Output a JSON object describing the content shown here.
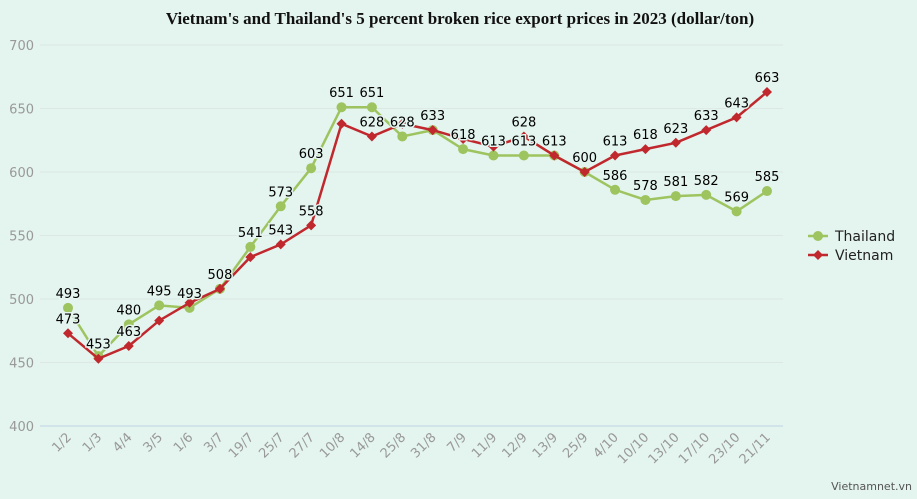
{
  "chart_data": {
    "type": "line",
    "title": "Vietnam's and Thailand's 5 percent broken rice export prices in 2023 (dollar/ton)",
    "source": "Vietnamnet.vn",
    "categories": [
      "1/2",
      "1/3",
      "4/4",
      "3/5",
      "1/6",
      "3/7",
      "19/7",
      "25/7",
      "27/7",
      "10/8",
      "14/8",
      "25/8",
      "31/8",
      "7/9",
      "11/9",
      "12/9",
      "13/9",
      "25/9",
      "4/10",
      "10/10",
      "13/10",
      "17/10",
      "23/10",
      "21/11"
    ],
    "series": [
      {
        "name": "Thailand",
        "color": "#9dc45f",
        "marker": "circle",
        "values": [
          493,
          455,
          480,
          495,
          493,
          508,
          541,
          573,
          603,
          651,
          651,
          628,
          633,
          618,
          613,
          613,
          613,
          600,
          586,
          578,
          581,
          582,
          569,
          585
        ],
        "value_labels": [
          "493",
          null,
          "480",
          "495",
          "493",
          "508",
          "541",
          "573",
          "603",
          "651",
          "651",
          "628",
          "633",
          "618",
          "613",
          "613",
          "613",
          "600",
          "586",
          "578",
          "581",
          "582",
          "569",
          "585"
        ]
      },
      {
        "name": "Vietnam",
        "color": "#c0282d",
        "marker": "diamond",
        "values": [
          473,
          453,
          463,
          483,
          497,
          508,
          533,
          543,
          558,
          638,
          628,
          638,
          633,
          626,
          620,
          628,
          613,
          600,
          613,
          618,
          623,
          633,
          643,
          663
        ],
        "value_labels": [
          "473",
          "453",
          "463",
          null,
          null,
          null,
          null,
          "543",
          "558",
          null,
          "628",
          null,
          null,
          null,
          null,
          "628",
          null,
          null,
          "613",
          "618",
          "623",
          "633",
          "643",
          "663"
        ]
      }
    ],
    "ylim": [
      400,
      700
    ],
    "yticks": [
      400,
      450,
      500,
      550,
      600,
      650,
      700
    ],
    "grid": true,
    "legend": "right"
  }
}
